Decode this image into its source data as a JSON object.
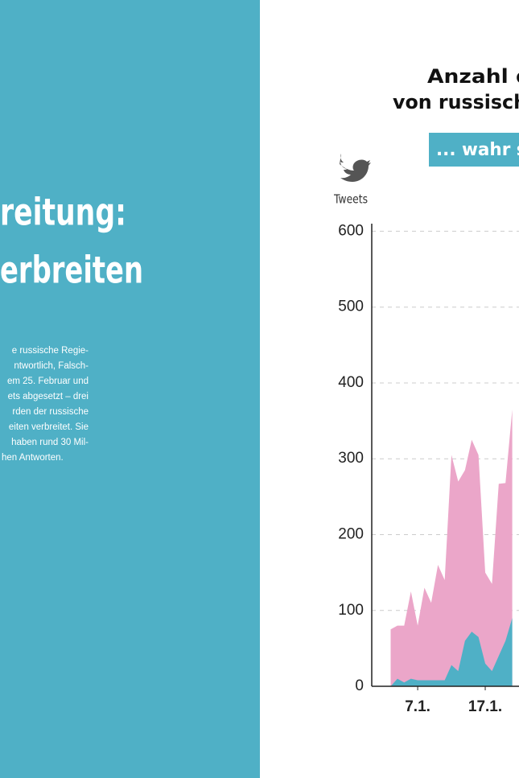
{
  "headline": {
    "lines": [
      "reitung:",
      "erbreiten"
    ]
  },
  "body": {
    "lines": [
      "e russische Regie-",
      "ntwortlich, Falsch-",
      "em 25. Februar und",
      "ets abgesetzt – drei",
      "rden der russische",
      "eiten verbreitet. Sie",
      "haben rund 30 Mil-",
      "hen Antworten."
    ]
  },
  "chart_data": {
    "type": "area",
    "title": [
      "Anzahl der",
      "von russischen"
    ],
    "tag": "... wahr si",
    "y_label": "Tweets",
    "x": [
      3,
      4,
      5,
      6,
      7,
      8,
      9,
      10,
      11,
      12,
      13,
      14,
      15,
      16,
      17,
      18,
      19,
      20,
      21
    ],
    "series": [
      {
        "color": "#eba6c9",
        "values": [
          75,
          80,
          80,
          125,
          80,
          130,
          110,
          160,
          140,
          305,
          270,
          285,
          325,
          305,
          150,
          135,
          267,
          268,
          365
        ]
      },
      {
        "color": "#4fb0c6",
        "values": [
          0,
          10,
          5,
          10,
          8,
          8,
          8,
          8,
          8,
          28,
          20,
          60,
          72,
          65,
          30,
          20,
          40,
          60,
          90
        ]
      }
    ],
    "xlim": [
      0.2,
      22
    ],
    "xticks": [
      {
        "value": 7,
        "label": "7.1."
      },
      {
        "value": 17,
        "label": "17.1."
      }
    ],
    "ylim": [
      0,
      610
    ],
    "yticks": [
      0,
      100,
      200,
      300,
      400,
      500,
      600
    ],
    "grid": true
  }
}
